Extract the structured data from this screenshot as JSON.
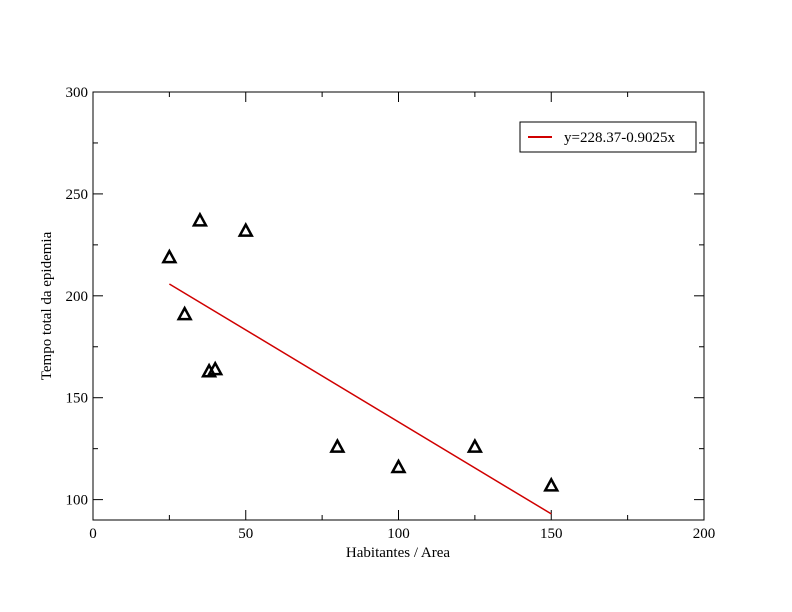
{
  "chart_data": {
    "type": "scatter",
    "title": "",
    "xlabel": "Habitantes /  Area",
    "ylabel": "Tempo total da epidemia",
    "xlim": [
      0,
      200
    ],
    "ylim": [
      90,
      300
    ],
    "xticks": [
      0,
      50,
      100,
      150,
      200
    ],
    "yticks": [
      100,
      150,
      200,
      250,
      300
    ],
    "x_minor_step": 25,
    "y_minor_step": 25,
    "grid": false,
    "legend_position": "top-right",
    "series": [
      {
        "kind": "scatter",
        "marker": "triangle",
        "color": "#000000",
        "x": [
          25,
          30,
          35,
          38,
          40,
          50,
          80,
          100,
          125,
          150
        ],
        "y": [
          219,
          191,
          237,
          163,
          164,
          232,
          126,
          116,
          126,
          107
        ]
      },
      {
        "kind": "line",
        "name": "y=228.37-0.9025x",
        "color": "#d00000",
        "x": [
          25,
          150
        ],
        "y": [
          205.81,
          93.0
        ]
      }
    ]
  }
}
